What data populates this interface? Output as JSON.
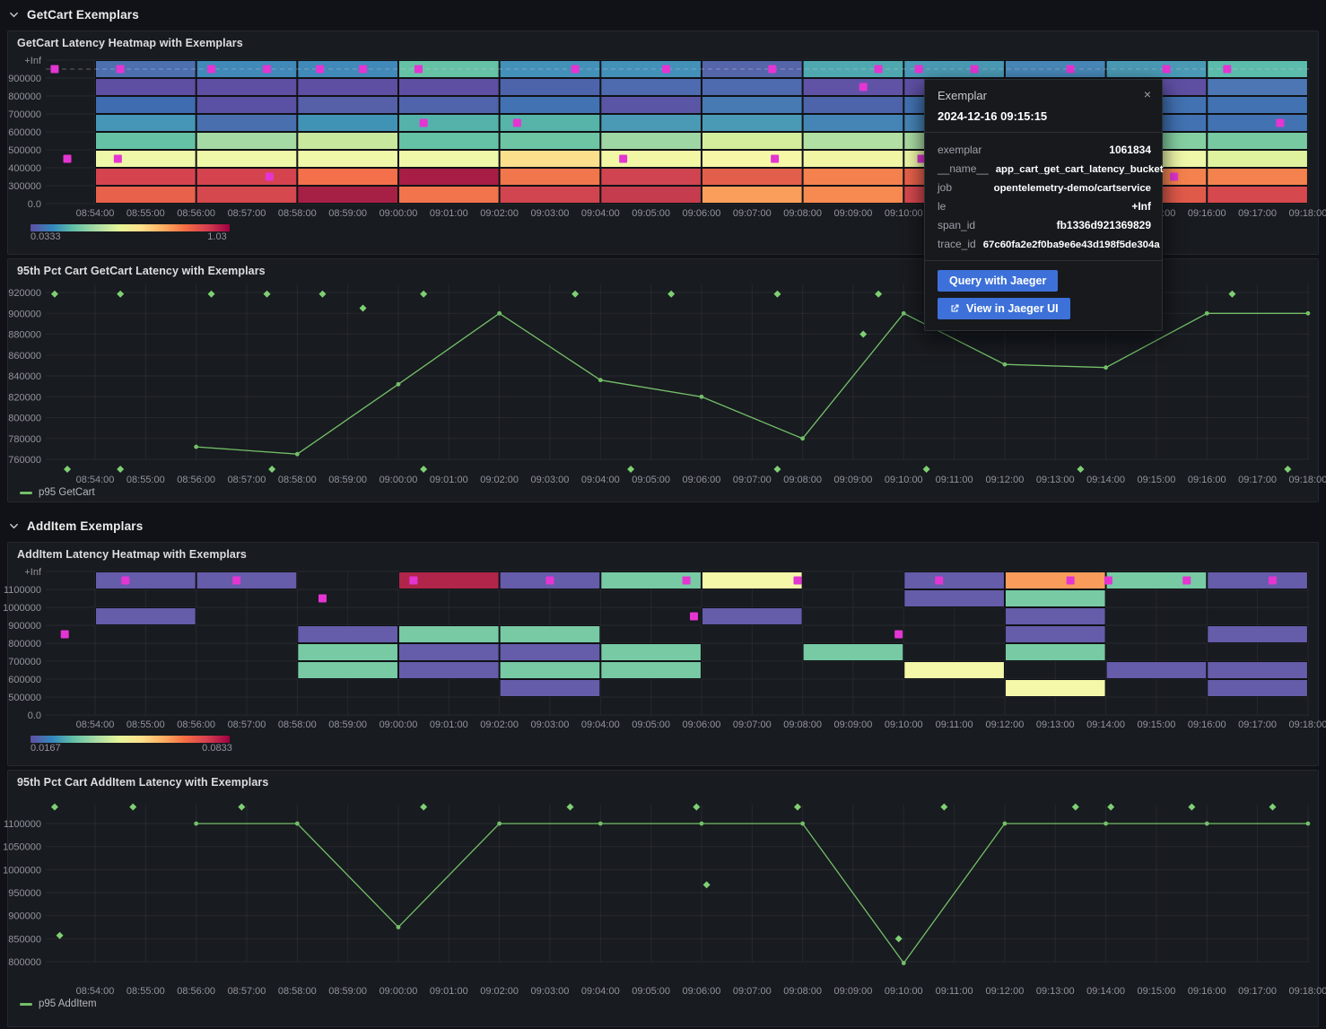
{
  "sections": [
    {
      "title": "GetCart Exemplars"
    },
    {
      "title": "AddItem Exemplars"
    }
  ],
  "colors": {
    "accent_green": "#73bf69",
    "exemplar_diamond": "#7ed073",
    "exemplar_magenta": "#e435d2",
    "button_blue": "#3d71d9",
    "axis_text": "rgba(204,204,220,0.68)",
    "grid_line": "rgba(204,204,220,0.08)"
  },
  "time_ticks": [
    "08:54:00",
    "08:55:00",
    "08:56:00",
    "08:57:00",
    "08:58:00",
    "08:59:00",
    "09:00:00",
    "09:01:00",
    "09:02:00",
    "09:03:00",
    "09:04:00",
    "09:05:00",
    "09:06:00",
    "09:07:00",
    "09:08:00",
    "09:09:00",
    "09:10:00",
    "09:11:00",
    "09:12:00",
    "09:13:00",
    "09:14:00",
    "09:15:00",
    "09:16:00",
    "09:17:00",
    "09:18:00"
  ],
  "tooltip": {
    "title": "Exemplar",
    "timestamp": "2024-12-16 09:15:15",
    "close_icon": "×",
    "fields": [
      {
        "key": "exemplar",
        "value": "1061834"
      },
      {
        "key": "__name__",
        "value": "app_cart_get_cart_latency_bucket"
      },
      {
        "key": "job",
        "value": "opentelemetry-demo/cartservice"
      },
      {
        "key": "le",
        "value": "+Inf"
      },
      {
        "key": "span_id",
        "value": "fb1336d921369829"
      },
      {
        "key": "trace_id",
        "value": "67c60fa2e2f0ba9e6e43d198f5de304a"
      }
    ],
    "buttons": [
      {
        "label": "Query with Jaeger",
        "icon": null
      },
      {
        "label": "View in Jaeger UI",
        "icon": "external-link-icon"
      }
    ]
  },
  "chart_data": [
    {
      "id": "getcart-latency-heatmap",
      "type": "heatmap",
      "title": "GetCart Latency Heatmap with Exemplars",
      "y_labels": [
        "+Inf",
        "900000",
        "800000",
        "700000",
        "600000",
        "500000",
        "400000",
        "300000",
        "0.0"
      ],
      "bucket_minutes": 2,
      "dashed_guide": true,
      "columns": [
        [
          "#4d6fae",
          "#5e4fa2",
          "#3f6cb0",
          "#4596b7",
          "#66c2a5",
          "#eef8a8",
          "#d5434f",
          "#e8614a"
        ],
        [
          "#4089b8",
          "#5e4fa2",
          "#5a51a4",
          "#4a6fae",
          "#a6daa4",
          "#eef8a8",
          "#d5434f",
          "#d5484e"
        ],
        [
          "#4089b8",
          "#5e4fa2",
          "#5560a8",
          "#4193b6",
          "#c8e89e",
          "#eef8a8",
          "#f4704a",
          "#a62045"
        ],
        [
          "#66c2a5",
          "#5e4fa2",
          "#5064ab",
          "#54b2ab",
          "#66c2a5",
          "#eef8a8",
          "#a81d45",
          "#f2744c"
        ],
        [
          "#4390b8",
          "#4d64aa",
          "#4272b2",
          "#56b4a9",
          "#6ec5a4",
          "#fcdf8d",
          "#f2764c",
          "#d0454f"
        ],
        [
          "#4390b8",
          "#4d6bae",
          "#5b55a6",
          "#4a9ab5",
          "#9fd7a4",
          "#f2f7a6",
          "#cf4450",
          "#c43c4d"
        ],
        [
          "#5565aa",
          "#4d6bae",
          "#4779b3",
          "#4a9ab5",
          "#d4ed9c",
          "#f6f8a8",
          "#e25f4b",
          "#f99f5b"
        ],
        [
          "#4fa8b0",
          "#6053a5",
          "#4d64aa",
          "#4585b6",
          "#b2dfa3",
          "#f0f6a4",
          "#f4814e",
          "#f68a51"
        ],
        [
          "#4a9ab5",
          "#5e4fa2",
          "#4272b2",
          "#4684b6",
          "#abdda4",
          "#eef8a8",
          "#e8614a",
          "#d5484e"
        ],
        [
          "#4787b8",
          "#5e4fa2",
          "#4d64aa",
          "#4596b7",
          "#9fd7a4",
          "#f2f7a6",
          "#f4704a",
          "#e8614a"
        ],
        [
          "#4a9ab5",
          "#5e4fa2",
          "#4272b2",
          "#4272b2",
          "#85d0a2",
          "#eef8a8",
          "#f4824e",
          "#e05a4a"
        ],
        [
          "#5bbcab",
          "#4c77b4",
          "#4272b2",
          "#4272b2",
          "#77c9a1",
          "#dff29e",
          "#f4824e",
          "#d5484e"
        ]
      ],
      "exemplars": [
        {
          "t": -0.8,
          "row": 0
        },
        {
          "t": 0.5,
          "row": 0
        },
        {
          "t": 2.3,
          "row": 0
        },
        {
          "t": 3.4,
          "row": 0
        },
        {
          "t": 4.45,
          "row": 0
        },
        {
          "t": 5.3,
          "row": 0
        },
        {
          "t": 6.4,
          "row": 0
        },
        {
          "t": 9.5,
          "row": 0
        },
        {
          "t": 11.3,
          "row": 0
        },
        {
          "t": 13.4,
          "row": 0
        },
        {
          "t": 15.5,
          "row": 0
        },
        {
          "t": 16.3,
          "row": 0
        },
        {
          "t": 17.4,
          "row": 0
        },
        {
          "t": 19.3,
          "row": 0
        },
        {
          "t": 21.2,
          "row": 0
        },
        {
          "t": 22.4,
          "row": 0
        },
        {
          "t": 15.2,
          "row": 1
        },
        {
          "t": 6.5,
          "row": 3
        },
        {
          "t": 8.35,
          "row": 3
        },
        {
          "t": 23.45,
          "row": 3
        },
        {
          "t": -0.55,
          "row": 5
        },
        {
          "t": 0.45,
          "row": 5
        },
        {
          "t": 10.45,
          "row": 5
        },
        {
          "t": 13.45,
          "row": 5
        },
        {
          "t": 16.35,
          "row": 5
        },
        {
          "t": 3.45,
          "row": 6
        },
        {
          "t": 21.35,
          "row": 6
        }
      ],
      "color_scale": {
        "min": "0.0333",
        "max": "1.03",
        "stops": [
          "#5e4fa2",
          "#3288bd",
          "#66c2a5",
          "#abdda4",
          "#e6f598",
          "#fee08b",
          "#fdae61",
          "#f46d43",
          "#d53e4f",
          "#9e0142"
        ]
      }
    },
    {
      "id": "p95-getcart",
      "type": "line",
      "title": "95th Pct Cart GetCart Latency with Exemplars",
      "y_ticks": [
        920000,
        900000,
        880000,
        860000,
        840000,
        820000,
        800000,
        780000,
        760000
      ],
      "series": [
        {
          "name": "p95 GetCart",
          "color": "#73bf69",
          "points": [
            {
              "t": 2,
              "v": 772000
            },
            {
              "t": 4,
              "v": 765000
            },
            {
              "t": 6,
              "v": 832000
            },
            {
              "t": 8,
              "v": 900000
            },
            {
              "t": 10,
              "v": 836000
            },
            {
              "t": 12,
              "v": 820000
            },
            {
              "t": 14,
              "v": 780000
            },
            {
              "t": 16,
              "v": 900000
            },
            {
              "t": 18,
              "v": 851000
            },
            {
              "t": 20,
              "v": 848000
            },
            {
              "t": 22,
              "v": 900000
            },
            {
              "t": 24,
              "v": 900000
            }
          ]
        }
      ],
      "exemplars": [
        {
          "t": -0.8,
          "v": 918500
        },
        {
          "t": 0.5,
          "v": 918500
        },
        {
          "t": 2.3,
          "v": 918500
        },
        {
          "t": 3.4,
          "v": 918500
        },
        {
          "t": 4.5,
          "v": 918500
        },
        {
          "t": 6.5,
          "v": 918500
        },
        {
          "t": 9.5,
          "v": 918500
        },
        {
          "t": 11.4,
          "v": 918500
        },
        {
          "t": 13.5,
          "v": 918500
        },
        {
          "t": 15.5,
          "v": 918500
        },
        {
          "t": 22.5,
          "v": 918500
        },
        {
          "t": 5.3,
          "v": 905000
        },
        {
          "t": 15.2,
          "v": 880000
        },
        {
          "t": -0.55,
          "v": 750500
        },
        {
          "t": 0.5,
          "v": 750500
        },
        {
          "t": 3.5,
          "v": 750500
        },
        {
          "t": 6.5,
          "v": 750500
        },
        {
          "t": 10.6,
          "v": 750500
        },
        {
          "t": 13.5,
          "v": 750500
        },
        {
          "t": 16.45,
          "v": 750500
        },
        {
          "t": 19.5,
          "v": 750500
        },
        {
          "t": 23.6,
          "v": 750500
        }
      ]
    },
    {
      "id": "additem-latency-heatmap",
      "type": "heatmap",
      "title": "AddItem Latency Heatmap with Exemplars",
      "y_labels": [
        "+Inf",
        "1100000",
        "1000000",
        "900000",
        "800000",
        "700000",
        "600000",
        "500000",
        "0.0"
      ],
      "bucket_minutes": 2,
      "dashed_guide": false,
      "columns": [
        [
          "#655caa",
          null,
          "#655caa",
          null,
          null,
          null,
          null,
          null
        ],
        [
          "#655caa",
          null,
          null,
          null,
          null,
          null,
          null,
          null
        ],
        [
          null,
          null,
          null,
          "#655caa",
          "#77caa4",
          "#77caa4",
          null,
          null
        ],
        [
          "#b1254a",
          null,
          null,
          "#77caa4",
          "#655caa",
          "#655caa",
          null,
          null
        ],
        [
          "#655caa",
          null,
          null,
          "#77caa4",
          "#655caa",
          "#77caa4",
          "#655caa",
          null
        ],
        [
          "#77caa4",
          null,
          null,
          null,
          "#77caa4",
          "#77caa4",
          null,
          null
        ],
        [
          "#f4f8a8",
          null,
          "#655caa",
          null,
          null,
          null,
          null,
          null
        ],
        [
          null,
          null,
          null,
          null,
          "#77caa4",
          null,
          null,
          null
        ],
        [
          "#655caa",
          "#655caa",
          null,
          null,
          null,
          "#f4f8a8",
          null,
          null
        ],
        [
          "#f99c5b",
          "#77caa4",
          "#655caa",
          "#655caa",
          "#77caa4",
          null,
          "#f4f8a8",
          null
        ],
        [
          "#77caa4",
          null,
          null,
          null,
          null,
          "#655caa",
          null,
          null
        ],
        [
          "#655caa",
          null,
          null,
          "#655caa",
          null,
          "#655caa",
          "#655caa",
          null
        ]
      ],
      "exemplars": [
        {
          "t": 0.6,
          "row": 0
        },
        {
          "t": 2.8,
          "row": 0
        },
        {
          "t": 6.3,
          "row": 0
        },
        {
          "t": 9.0,
          "row": 0
        },
        {
          "t": 11.7,
          "row": 0
        },
        {
          "t": 13.9,
          "row": 0
        },
        {
          "t": 16.7,
          "row": 0
        },
        {
          "t": 19.3,
          "row": 0
        },
        {
          "t": 20.05,
          "row": 0
        },
        {
          "t": 21.6,
          "row": 0
        },
        {
          "t": 23.3,
          "row": 0
        },
        {
          "t": 4.5,
          "row": 1
        },
        {
          "t": 11.85,
          "row": 2
        },
        {
          "t": -0.6,
          "row": 3
        },
        {
          "t": 15.9,
          "row": 3
        }
      ],
      "color_scale": {
        "min": "0.0167",
        "max": "0.0833",
        "stops": [
          "#5e4fa2",
          "#3288bd",
          "#66c2a5",
          "#abdda4",
          "#e6f598",
          "#fee08b",
          "#fdae61",
          "#f46d43",
          "#d53e4f",
          "#9e0142"
        ]
      }
    },
    {
      "id": "p95-additem",
      "type": "line",
      "title": "95th Pct Cart AddItem Latency with Exemplars",
      "y_ticks": [
        1100000,
        1050000,
        1000000,
        950000,
        900000,
        850000,
        800000
      ],
      "series": [
        {
          "name": "p95 AddItem",
          "color": "#73bf69",
          "points": [
            {
              "t": 2,
              "v": 1100000
            },
            {
              "t": 4,
              "v": 1100000
            },
            {
              "t": 6,
              "v": 875000
            },
            {
              "t": 8,
              "v": 1100000
            },
            {
              "t": 10,
              "v": 1100000
            },
            {
              "t": 12,
              "v": 1100000
            },
            {
              "t": 14,
              "v": 1100000
            },
            {
              "t": 16,
              "v": 797000
            },
            {
              "t": 18,
              "v": 1100000
            },
            {
              "t": 20,
              "v": 1100000
            },
            {
              "t": 22,
              "v": 1100000
            },
            {
              "t": 24,
              "v": 1100000
            }
          ]
        }
      ],
      "exemplars": [
        {
          "t": -0.8,
          "v": 1136000
        },
        {
          "t": 0.75,
          "v": 1136000
        },
        {
          "t": 2.9,
          "v": 1136000
        },
        {
          "t": 6.5,
          "v": 1136000
        },
        {
          "t": 9.4,
          "v": 1136000
        },
        {
          "t": 11.9,
          "v": 1136000
        },
        {
          "t": 13.9,
          "v": 1136000
        },
        {
          "t": 16.8,
          "v": 1136000
        },
        {
          "t": 19.4,
          "v": 1136000
        },
        {
          "t": 20.1,
          "v": 1136000
        },
        {
          "t": 21.7,
          "v": 1136000
        },
        {
          "t": 23.3,
          "v": 1136000
        },
        {
          "t": -0.7,
          "v": 857000
        },
        {
          "t": 12.1,
          "v": 967000
        },
        {
          "t": 15.9,
          "v": 850000
        }
      ]
    }
  ]
}
